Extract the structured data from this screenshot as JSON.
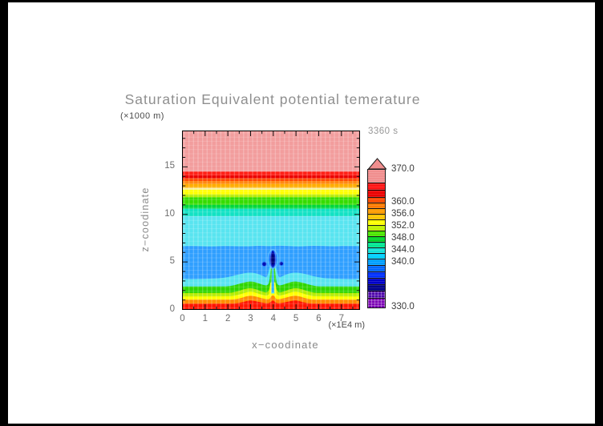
{
  "chart_data": {
    "type": "heatmap",
    "title": "Saturation Equivalent potential temerature",
    "time_label": "3360 s",
    "xlabel": "x−coodinate",
    "ylabel": "z−coodinate",
    "x_units": "(×1E4 m)",
    "y_units": "(×1000 m)",
    "xlim": [
      0,
      7.8
    ],
    "ylim": [
      0,
      18.8
    ],
    "x_ticks": [
      "0",
      "1",
      "2",
      "3",
      "4",
      "5",
      "6",
      "7"
    ],
    "y_ticks": [
      "0",
      "5",
      "10",
      "15"
    ],
    "x_minor_step": 0.5,
    "y_minor_step": 1,
    "grid": false,
    "legend_position": "right",
    "contour_levels": [
      330,
      332,
      334,
      336,
      338,
      340,
      342,
      344,
      346,
      348,
      350,
      352,
      354,
      356,
      358,
      360,
      362,
      364,
      366,
      368,
      370
    ],
    "layers": [
      {
        "z": [
          14.5,
          18.8
        ],
        "value": "366-372",
        "color": "#F29D9D"
      },
      {
        "z": [
          14.1,
          14.5
        ],
        "value": "364-366",
        "color": "#FF1E14"
      },
      {
        "z": [
          13.8,
          14.1
        ],
        "value": "362-364",
        "color": "#EB0000"
      },
      {
        "z": [
          13.5,
          13.8
        ],
        "value": "360-362",
        "color": "#FF4A00"
      },
      {
        "z": [
          13.2,
          13.5
        ],
        "value": "358-360",
        "color": "#FF7F00"
      },
      {
        "z": [
          12.8,
          13.2
        ],
        "value": "356-358",
        "color": "#FFAD00"
      },
      {
        "z": [
          12.6,
          12.8
        ],
        "value": "355-356",
        "color": "#FAF0A8"
      },
      {
        "z": [
          12.1,
          12.6
        ],
        "value": "352-355",
        "color": "#FFFF00"
      },
      {
        "z": [
          11.8,
          12.1
        ],
        "value": "350-352",
        "color": "#B4EC00"
      },
      {
        "z": [
          11.0,
          11.8
        ],
        "value": "348-350",
        "color": "#35DC00"
      },
      {
        "z": [
          10.6,
          11.0
        ],
        "value": "346-348",
        "color": "#00D83C"
      },
      {
        "z": [
          9.8,
          10.6
        ],
        "value": "345-346",
        "color": "#12E2C4"
      },
      {
        "z": [
          0.0,
          9.8
        ],
        "value": "344-345",
        "color": "#58E4F0"
      }
    ],
    "blue_band": {
      "z": [
        3.3,
        6.8
      ],
      "value": "340-342",
      "color": "#2F9FFF"
    },
    "surface_bands": [
      {
        "name": "green",
        "z_top": 2.4,
        "z_peak": 3.0,
        "value": "346-350",
        "color": "#2ED600"
      },
      {
        "name": "yellow-green",
        "z_top": 1.7,
        "z_peak": 2.2,
        "value": "350-352",
        "color": "#B4EC00"
      },
      {
        "name": "yellow",
        "z_top": 1.35,
        "z_peak": 1.8,
        "value": "352-356",
        "color": "#FFFF00"
      },
      {
        "name": "orange",
        "z_top": 1.0,
        "z_peak": 1.45,
        "value": "356-360",
        "color": "#FF8C00"
      },
      {
        "name": "red",
        "z_top": 0.6,
        "z_peak": 0.95,
        "value": "360-366",
        "color": "#FF1400"
      }
    ],
    "plume": {
      "x_center": 4.0,
      "head_z": [
        4.3,
        6.2
      ],
      "stem_z": [
        1.5,
        4.3
      ],
      "min_value": "<334",
      "side_dots_x": [
        3.62,
        4.37
      ],
      "side_dots_z": 4.8,
      "colors": {
        "stem_outer": "#58E4F0",
        "stem_inner": "#2F9FFF",
        "halo": "#4FB6FF",
        "ring": "#1E78FF",
        "head": "#0010B4",
        "core": "#000478"
      }
    },
    "colorbar": {
      "triangle_color": "#F08E8E",
      "labels": [
        "370.0",
        "360.0",
        "356.0",
        "352.0",
        "348.0",
        "344.0",
        "340.0",
        "330.0"
      ],
      "label_offsets": [
        0,
        41,
        56,
        71,
        86,
        101,
        116,
        172
      ],
      "cells": [
        {
          "c": "#F08E8E",
          "h": 16,
          "hatch": false
        },
        {
          "c": "#FF1414",
          "h": 9,
          "hatch": false
        },
        {
          "c": "#EB0000",
          "h": 9,
          "hatch": false
        },
        {
          "c": "#FF4A00",
          "h": 7,
          "hatch": false
        },
        {
          "c": "#FF7A00",
          "h": 7,
          "hatch": false
        },
        {
          "c": "#FF9C00",
          "h": 7,
          "hatch": false
        },
        {
          "c": "#FFC400",
          "h": 7,
          "hatch": false
        },
        {
          "c": "#FFFF00",
          "h": 7,
          "hatch": false
        },
        {
          "c": "#BDF000",
          "h": 7,
          "hatch": false
        },
        {
          "c": "#4CE600",
          "h": 7,
          "hatch": false
        },
        {
          "c": "#00D42A",
          "h": 7,
          "hatch": false
        },
        {
          "c": "#00E692",
          "h": 7,
          "hatch": false
        },
        {
          "c": "#12E2D8",
          "h": 7,
          "hatch": false
        },
        {
          "c": "#00CFFF",
          "h": 7,
          "hatch": false
        },
        {
          "c": "#009FFF",
          "h": 8,
          "hatch": false
        },
        {
          "c": "#0066FF",
          "h": 8,
          "hatch": false
        },
        {
          "c": "#0030FF",
          "h": 8,
          "hatch": false
        },
        {
          "c": "#0000C8",
          "h": 8,
          "hatch": false
        },
        {
          "c": "#000089",
          "h": 8,
          "hatch": false
        },
        {
          "c": "#4A00A8",
          "h": 9,
          "hatch": true
        },
        {
          "c": "#7A00B4",
          "h": 13,
          "hatch": true
        }
      ]
    }
  }
}
